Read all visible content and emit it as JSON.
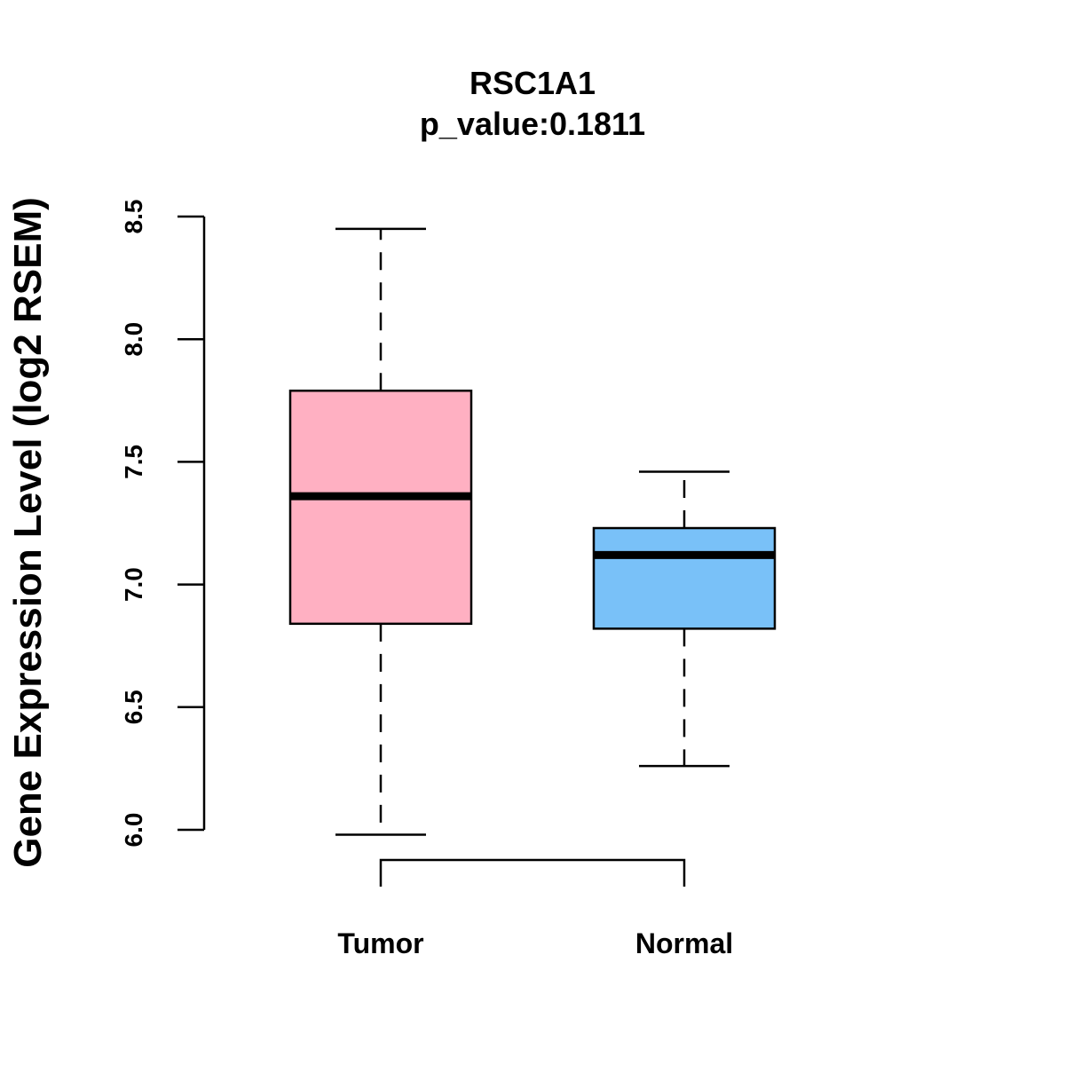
{
  "chart_data": {
    "type": "boxplot",
    "title": "RSC1A1",
    "subtitle": "p_value:0.1811",
    "xlabel": "",
    "ylabel": "Gene Expression Level (log2 RSEM)",
    "ylim": [
      6.0,
      8.5
    ],
    "yticks": [
      6.0,
      6.5,
      7.0,
      7.5,
      8.0,
      8.5
    ],
    "ytick_labels": [
      "6.0",
      "6.5",
      "7.0",
      "7.5",
      "8.0",
      "8.5"
    ],
    "grid": false,
    "categories": [
      "Tumor",
      "Normal"
    ],
    "series": [
      {
        "name": "Tumor",
        "min": 5.98,
        "q1": 6.84,
        "median": 7.36,
        "q3": 7.79,
        "max": 8.45,
        "color": "#FFB0C2"
      },
      {
        "name": "Normal",
        "min": 6.26,
        "q1": 6.82,
        "median": 7.12,
        "q3": 7.23,
        "max": 7.46,
        "color": "#79C1F8"
      }
    ],
    "annotation": "comparison bracket between Tumor and Normal"
  }
}
